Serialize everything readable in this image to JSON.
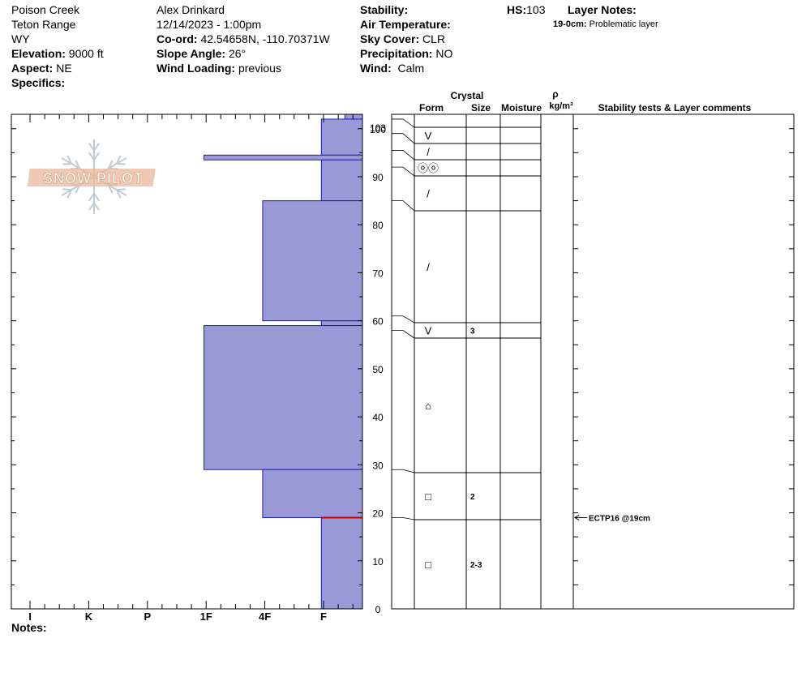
{
  "header": {
    "location": "Poison Creek",
    "range": "Teton Range",
    "state": "WY",
    "elevation_label": "Elevation:",
    "elevation": "9000 ft",
    "aspect_label": "Aspect:",
    "aspect": "NE",
    "specifics_label": "Specifics:",
    "observer": "Alex Drinkard",
    "datetime": "12/14/2023 - 1:00pm",
    "coord_label": "Co-ord:",
    "coord": "42.54658N, -110.70371W",
    "slope_label": "Slope Angle:",
    "slope": "26°",
    "wind_loading_label": "Wind Loading:",
    "wind_loading": "previous",
    "stability_label": "Stability:",
    "air_temp_label": "Air Temperature:",
    "sky_label": "Sky Cover:",
    "sky": "CLR",
    "precip_label": "Precipitation:",
    "precip": "NO",
    "wind_label": "Wind:",
    "wind": "Calm",
    "hs_label": "HS:",
    "hs": "103",
    "layer_notes_label": "Layer Notes:",
    "layer_note_range": "19-0cm:",
    "layer_note_text": "Problematic layer"
  },
  "logo": {
    "text": "SNOW PILOT"
  },
  "notes_label": "Notes:",
  "table_headers": {
    "crystal": "Crystal",
    "form": "Form",
    "size": "Size",
    "moisture": "Moisture",
    "rho": "ρ",
    "density_unit": "kg/m³",
    "stability": "Stability tests & Layer comments"
  },
  "chart_data": {
    "type": "bar",
    "title": "",
    "hardness_axis": [
      "I",
      "K",
      "P",
      "1F",
      "4F",
      "F"
    ],
    "depth_axis": {
      "ylim": [
        0,
        103
      ],
      "ticks": [
        0,
        10,
        20,
        30,
        40,
        50,
        60,
        70,
        80,
        90,
        100
      ],
      "hs_label": "103",
      "unit": "cm"
    },
    "hardness_profile": [
      {
        "top": 103,
        "bottom": 102,
        "hardness": 0.3
      },
      {
        "top": 102,
        "bottom": 94.5,
        "hardness": 0.7
      },
      {
        "top": 94.5,
        "bottom": 93.5,
        "hardness": 2.7
      },
      {
        "top": 93.5,
        "bottom": 85,
        "hardness": 0.7
      },
      {
        "top": 85,
        "bottom": 60,
        "hardness": 1.7
      },
      {
        "top": 60,
        "bottom": 59,
        "hardness": 0.7
      },
      {
        "top": 59,
        "bottom": 29,
        "hardness": 2.7
      },
      {
        "top": 29,
        "bottom": 19,
        "hardness": 1.7
      },
      {
        "top": 19,
        "bottom": 0,
        "hardness": 0.7
      }
    ],
    "problem_layer_depth": 19,
    "layers": [
      {
        "top": 103,
        "bottom": 102,
        "form": "",
        "size": ""
      },
      {
        "top": 102,
        "bottom": 99,
        "form": "V",
        "size": ""
      },
      {
        "top": 99,
        "bottom": 95.5,
        "form": "/",
        "size": ""
      },
      {
        "top": 95.5,
        "bottom": 92,
        "form": "ⓞⓞ",
        "size": ""
      },
      {
        "top": 92,
        "bottom": 85,
        "form": "/",
        "size": ""
      },
      {
        "top": 85,
        "bottom": 61,
        "form": "/",
        "size": ""
      },
      {
        "top": 61,
        "bottom": 58,
        "form": "V",
        "size": "3"
      },
      {
        "top": 58,
        "bottom": 29,
        "form": "⌂",
        "size": ""
      },
      {
        "top": 29,
        "bottom": 19,
        "form": "□",
        "size": "2"
      },
      {
        "top": 19,
        "bottom": 0,
        "form": "□",
        "size": "2-3"
      }
    ],
    "stability_tests": [
      {
        "depth": 19,
        "result": "ECTP16 @19cm"
      }
    ]
  }
}
